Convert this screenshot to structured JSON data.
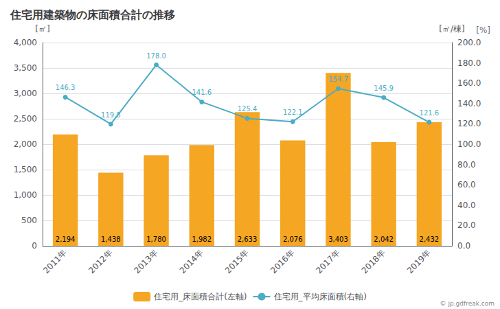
{
  "chart_data": {
    "type": "bar",
    "title": "住宅用建築物の床面積合計の推移",
    "categories": [
      "2011年",
      "2012年",
      "2013年",
      "2014年",
      "2015年",
      "2016年",
      "2017年",
      "2018年",
      "2019年"
    ],
    "series": [
      {
        "name": "住宅用_床面積合計(左軸)",
        "type": "bar",
        "color": "#F5A623",
        "values": [
          2194,
          1438,
          1780,
          1982,
          2633,
          2076,
          3403,
          2042,
          2432
        ],
        "value_labels": [
          "2,194",
          "1,438",
          "1,780",
          "1,982",
          "2,633",
          "2,076",
          "3,403",
          "2,042",
          "2,432"
        ],
        "data_labels": true
      },
      {
        "name": "住宅用_平均床面積(右軸)",
        "type": "line",
        "axis": "y2",
        "color": "#4BACC6",
        "marker": "circle",
        "values": [
          146.3,
          119.8,
          178.0,
          141.6,
          125.4,
          122.1,
          154.7,
          145.9,
          121.6
        ],
        "value_labels": [
          "146.3",
          "119.8",
          "178.0",
          "141.6",
          "125.4",
          "122.1",
          "154.7",
          "145.9",
          "121.6"
        ],
        "data_labels": true
      }
    ],
    "ylabel": "[㎡]",
    "y2label": "[㎡/棟]",
    "annotations": [
      "[%]",
      "© jp.gdfreak.com"
    ],
    "ylim": [
      0,
      4000
    ],
    "yticks": [
      0,
      {
        "value": 500,
        "label": "500"
      },
      {
        "value": 1000,
        "label": "1,000"
      },
      {
        "value": 1500,
        "label": "1,500"
      },
      {
        "value": 2000,
        "label": "2,000"
      },
      {
        "value": 2500,
        "label": "2,500"
      },
      {
        "value": 3000,
        "label": "3,000"
      },
      {
        "value": 3500,
        "label": "3,500"
      },
      {
        "value": 4000,
        "label": "4,000"
      }
    ],
    "y2lim": [
      0,
      200
    ],
    "y2ticks": [
      {
        "value": 0,
        "label": "0.0"
      },
      {
        "value": 20,
        "label": "20.0"
      },
      {
        "value": 40,
        "label": "40.0"
      },
      {
        "value": 60,
        "label": "60.0"
      },
      {
        "value": 80,
        "label": "80.0"
      },
      {
        "value": 100,
        "label": "100.0"
      },
      {
        "value": 120,
        "label": "120.0"
      },
      {
        "value": 140,
        "label": "140.0"
      },
      {
        "value": 160,
        "label": "160.0"
      },
      {
        "value": 180,
        "label": "180.0"
      },
      {
        "value": 200,
        "label": "200.0"
      }
    ],
    "grid": true,
    "legend": "bottom"
  }
}
